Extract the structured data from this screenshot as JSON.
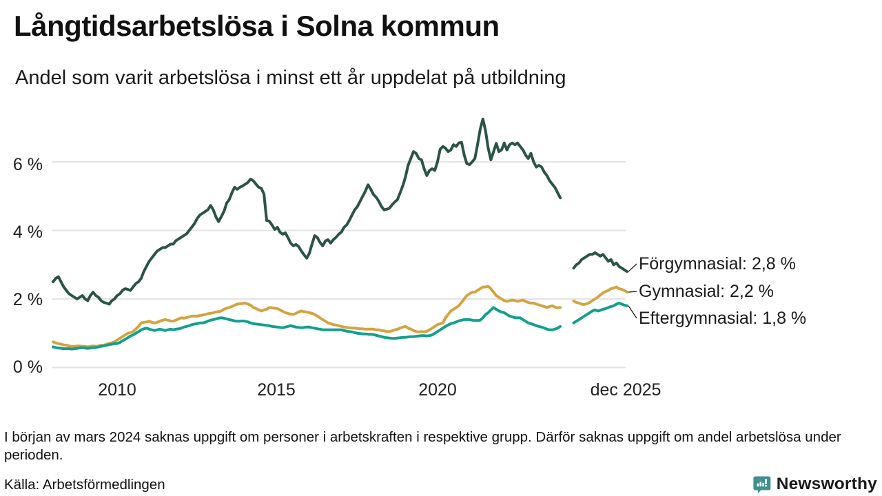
{
  "header": {
    "title": "Långtidsarbetslösa i Solna kommun",
    "subtitle": "Andel som varit arbetslösa i minst ett år uppdelat på utbildning"
  },
  "chart_data": {
    "type": "line",
    "title": "Långtidsarbetslösa i Solna kommun",
    "subtitle": "Andel som varit arbetslösa i minst ett år uppdelat på utbildning",
    "unit": "%",
    "frequency": "monthly",
    "x_start": "2008-01",
    "x_end": "2025-12",
    "ylim": [
      0,
      7.5
    ],
    "grid": "horizontal",
    "gap_period": "2023-12 to 2024-03 (values missing)",
    "y_ticks": [
      {
        "label": "6 %",
        "value": 6
      },
      {
        "label": "4 %",
        "value": 4
      },
      {
        "label": "2 %",
        "value": 2
      },
      {
        "label": "0 %",
        "value": 0
      }
    ],
    "x_ticks": [
      {
        "label": "2010",
        "year": 2010.0
      },
      {
        "label": "2015",
        "year": 2015.0
      },
      {
        "label": "2020",
        "year": 2020.0
      },
      {
        "label": "dec 2025",
        "year": 2025.92
      }
    ],
    "series": [
      {
        "name": "Förgymnasial",
        "label": "Förgymnasial: 2,8 %",
        "end_value": "2,8 %",
        "color": "#2b5347",
        "values": [
          2.5,
          2.6,
          2.65,
          2.5,
          2.35,
          2.25,
          2.15,
          2.1,
          2.05,
          2.0,
          2.05,
          2.1,
          2.0,
          1.95,
          2.1,
          2.2,
          2.1,
          2.05,
          1.95,
          1.9,
          1.88,
          1.85,
          1.95,
          2.0,
          2.1,
          2.15,
          2.25,
          2.3,
          2.28,
          2.25,
          2.35,
          2.45,
          2.5,
          2.6,
          2.8,
          2.95,
          3.1,
          3.2,
          3.3,
          3.4,
          3.45,
          3.5,
          3.5,
          3.55,
          3.6,
          3.6,
          3.7,
          3.75,
          3.8,
          3.85,
          3.9,
          4.0,
          4.1,
          4.2,
          4.35,
          4.45,
          4.5,
          4.55,
          4.6,
          4.73,
          4.6,
          4.4,
          4.26,
          4.4,
          4.55,
          4.79,
          4.9,
          5.1,
          5.26,
          5.2,
          5.26,
          5.3,
          5.35,
          5.4,
          5.5,
          5.45,
          5.35,
          5.26,
          5.23,
          5.06,
          4.29,
          4.27,
          4.16,
          4.03,
          4.09,
          3.95,
          3.89,
          3.93,
          3.79,
          3.63,
          3.55,
          3.59,
          3.53,
          3.4,
          3.29,
          3.19,
          3.33,
          3.6,
          3.85,
          3.79,
          3.65,
          3.55,
          3.69,
          3.73,
          3.63,
          3.73,
          3.8,
          3.89,
          3.95,
          4.09,
          4.16,
          4.3,
          4.45,
          4.6,
          4.7,
          4.85,
          5.0,
          5.15,
          5.33,
          5.2,
          5.05,
          4.97,
          4.85,
          4.7,
          4.6,
          4.62,
          4.65,
          4.75,
          4.83,
          4.9,
          5.1,
          5.3,
          5.56,
          5.9,
          6.1,
          6.3,
          6.25,
          6.1,
          6.06,
          5.8,
          5.6,
          5.75,
          5.8,
          5.75,
          6.0,
          6.37,
          6.45,
          6.4,
          6.3,
          6.35,
          6.5,
          6.45,
          6.55,
          6.57,
          6.2,
          5.95,
          5.92,
          6.0,
          6.1,
          6.5,
          6.95,
          7.25,
          6.9,
          6.4,
          6.06,
          6.3,
          6.54,
          6.3,
          6.35,
          6.55,
          6.35,
          6.5,
          6.55,
          6.5,
          6.55,
          6.45,
          6.35,
          6.2,
          6.1,
          6.25,
          6.0,
          5.85,
          5.9,
          5.85,
          5.7,
          5.6,
          5.45,
          5.35,
          5.25,
          5.1,
          4.95,
          null,
          null,
          null,
          null,
          2.9,
          3.0,
          3.05,
          3.15,
          3.2,
          3.25,
          3.3,
          3.3,
          3.35,
          3.3,
          3.25,
          3.3,
          3.2,
          3.1,
          3.15,
          3.0,
          3.05,
          2.95,
          2.9,
          2.85,
          2.8
        ]
      },
      {
        "name": "Gymnasial",
        "label": "Gymnasial: 2,2 %",
        "end_value": "2,2 %",
        "color": "#d4a342",
        "values": [
          0.75,
          0.72,
          0.7,
          0.68,
          0.66,
          0.65,
          0.63,
          0.62,
          0.62,
          0.63,
          0.63,
          0.62,
          0.62,
          0.6,
          0.62,
          0.63,
          0.62,
          0.63,
          0.65,
          0.65,
          0.68,
          0.7,
          0.72,
          0.75,
          0.8,
          0.85,
          0.9,
          0.95,
          1.0,
          1.02,
          1.05,
          1.12,
          1.2,
          1.3,
          1.32,
          1.33,
          1.35,
          1.32,
          1.3,
          1.32,
          1.35,
          1.38,
          1.4,
          1.38,
          1.36,
          1.35,
          1.38,
          1.42,
          1.45,
          1.44,
          1.46,
          1.48,
          1.5,
          1.5,
          1.5,
          1.52,
          1.53,
          1.55,
          1.57,
          1.58,
          1.6,
          1.62,
          1.63,
          1.65,
          1.7,
          1.73,
          1.75,
          1.78,
          1.82,
          1.85,
          1.86,
          1.87,
          1.88,
          1.85,
          1.82,
          1.75,
          1.72,
          1.68,
          1.65,
          1.68,
          1.7,
          1.75,
          1.74,
          1.73,
          1.72,
          1.68,
          1.64,
          1.6,
          1.58,
          1.56,
          1.55,
          1.58,
          1.62,
          1.65,
          1.63,
          1.62,
          1.6,
          1.58,
          1.55,
          1.5,
          1.45,
          1.4,
          1.35,
          1.3,
          1.28,
          1.25,
          1.24,
          1.22,
          1.2,
          1.18,
          1.17,
          1.16,
          1.15,
          1.15,
          1.14,
          1.13,
          1.13,
          1.12,
          1.12,
          1.12,
          1.12,
          1.1,
          1.1,
          1.08,
          1.07,
          1.05,
          1.05,
          1.07,
          1.1,
          1.12,
          1.15,
          1.18,
          1.2,
          1.15,
          1.12,
          1.08,
          1.05,
          1.04,
          1.05,
          1.04,
          1.06,
          1.1,
          1.15,
          1.2,
          1.25,
          1.28,
          1.3,
          1.45,
          1.55,
          1.65,
          1.7,
          1.75,
          1.8,
          1.9,
          2.0,
          2.1,
          2.15,
          2.2,
          2.2,
          2.25,
          2.3,
          2.35,
          2.35,
          2.37,
          2.3,
          2.2,
          2.1,
          2.05,
          2.0,
          1.95,
          1.93,
          1.95,
          1.97,
          1.95,
          1.93,
          1.95,
          1.97,
          1.93,
          1.9,
          1.88,
          1.88,
          1.85,
          1.83,
          1.8,
          1.78,
          1.75,
          1.78,
          1.8,
          1.76,
          1.74,
          1.75,
          null,
          null,
          null,
          null,
          1.94,
          1.9,
          1.88,
          1.85,
          1.84,
          1.86,
          1.9,
          1.95,
          2.0,
          2.05,
          2.12,
          2.18,
          2.22,
          2.25,
          2.3,
          2.32,
          2.35,
          2.3,
          2.28,
          2.25,
          2.2
        ]
      },
      {
        "name": "Eftergymnasial",
        "label": "Eftergymnasial: 1,8 %",
        "end_value": "1,8 %",
        "color": "#12a08d",
        "values": [
          0.6,
          0.58,
          0.57,
          0.56,
          0.55,
          0.55,
          0.55,
          0.54,
          0.55,
          0.56,
          0.57,
          0.58,
          0.57,
          0.56,
          0.57,
          0.58,
          0.58,
          0.6,
          0.62,
          0.63,
          0.65,
          0.67,
          0.68,
          0.7,
          0.7,
          0.73,
          0.78,
          0.82,
          0.87,
          0.92,
          0.95,
          1.0,
          1.05,
          1.1,
          1.13,
          1.15,
          1.12,
          1.1,
          1.08,
          1.1,
          1.12,
          1.1,
          1.08,
          1.1,
          1.12,
          1.1,
          1.12,
          1.13,
          1.15,
          1.18,
          1.2,
          1.22,
          1.25,
          1.27,
          1.28,
          1.3,
          1.3,
          1.32,
          1.35,
          1.38,
          1.4,
          1.42,
          1.44,
          1.45,
          1.44,
          1.42,
          1.4,
          1.38,
          1.36,
          1.35,
          1.35,
          1.36,
          1.35,
          1.33,
          1.3,
          1.28,
          1.27,
          1.26,
          1.25,
          1.24,
          1.23,
          1.22,
          1.2,
          1.19,
          1.18,
          1.17,
          1.16,
          1.18,
          1.2,
          1.22,
          1.2,
          1.18,
          1.17,
          1.16,
          1.17,
          1.18,
          1.18,
          1.16,
          1.15,
          1.13,
          1.12,
          1.1,
          1.1,
          1.1,
          1.1,
          1.1,
          1.1,
          1.1,
          1.1,
          1.08,
          1.06,
          1.05,
          1.04,
          1.02,
          1.0,
          0.99,
          0.98,
          0.98,
          0.97,
          0.97,
          0.96,
          0.94,
          0.92,
          0.9,
          0.88,
          0.87,
          0.86,
          0.85,
          0.85,
          0.86,
          0.87,
          0.88,
          0.88,
          0.89,
          0.9,
          0.9,
          0.91,
          0.92,
          0.93,
          0.93,
          0.92,
          0.93,
          0.95,
          1.0,
          1.05,
          1.1,
          1.15,
          1.2,
          1.24,
          1.28,
          1.3,
          1.33,
          1.36,
          1.38,
          1.4,
          1.4,
          1.4,
          1.38,
          1.37,
          1.37,
          1.38,
          1.45,
          1.55,
          1.6,
          1.68,
          1.75,
          1.7,
          1.65,
          1.62,
          1.6,
          1.55,
          1.5,
          1.48,
          1.45,
          1.45,
          1.45,
          1.4,
          1.35,
          1.3,
          1.28,
          1.25,
          1.22,
          1.2,
          1.18,
          1.15,
          1.12,
          1.1,
          1.1,
          1.12,
          1.15,
          1.2,
          null,
          null,
          null,
          null,
          1.3,
          1.35,
          1.4,
          1.45,
          1.5,
          1.55,
          1.6,
          1.65,
          1.68,
          1.65,
          1.67,
          1.7,
          1.72,
          1.75,
          1.78,
          1.8,
          1.85,
          1.88,
          1.85,
          1.82,
          1.8
        ]
      }
    ],
    "colors": {
      "grid": "#e3e3e3",
      "connector": "#1a1a1a"
    }
  },
  "footnote": {
    "text": "I början av mars 2024 saknas uppgift om personer i arbetskraften i respektive grupp. Därför saknas uppgift om andel arbetslösa under perioden."
  },
  "source": {
    "text": "Källa: Arbetsförmedlingen"
  },
  "logo": {
    "text": "Newsworthy",
    "color": "#3e918c"
  }
}
